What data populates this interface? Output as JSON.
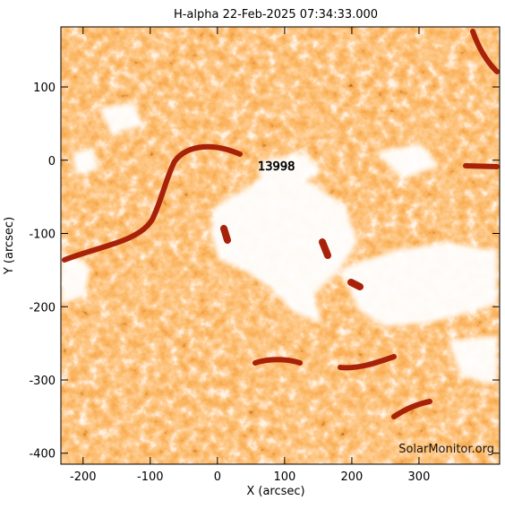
{
  "chart_data": {
    "type": "image",
    "title": "H-alpha 22-Feb-2025 07:34:33.000",
    "xlabel": "X (arcsec)",
    "ylabel": "Y (arcsec)",
    "xlim": [
      -233,
      420
    ],
    "ylim": [
      -415,
      182
    ],
    "xticks": [
      -200,
      -100,
      0,
      100,
      200,
      300
    ],
    "yticks": [
      -400,
      -300,
      -200,
      -100,
      0,
      100
    ],
    "region_label": "13998",
    "watermark": "SolarMonitor.org"
  }
}
